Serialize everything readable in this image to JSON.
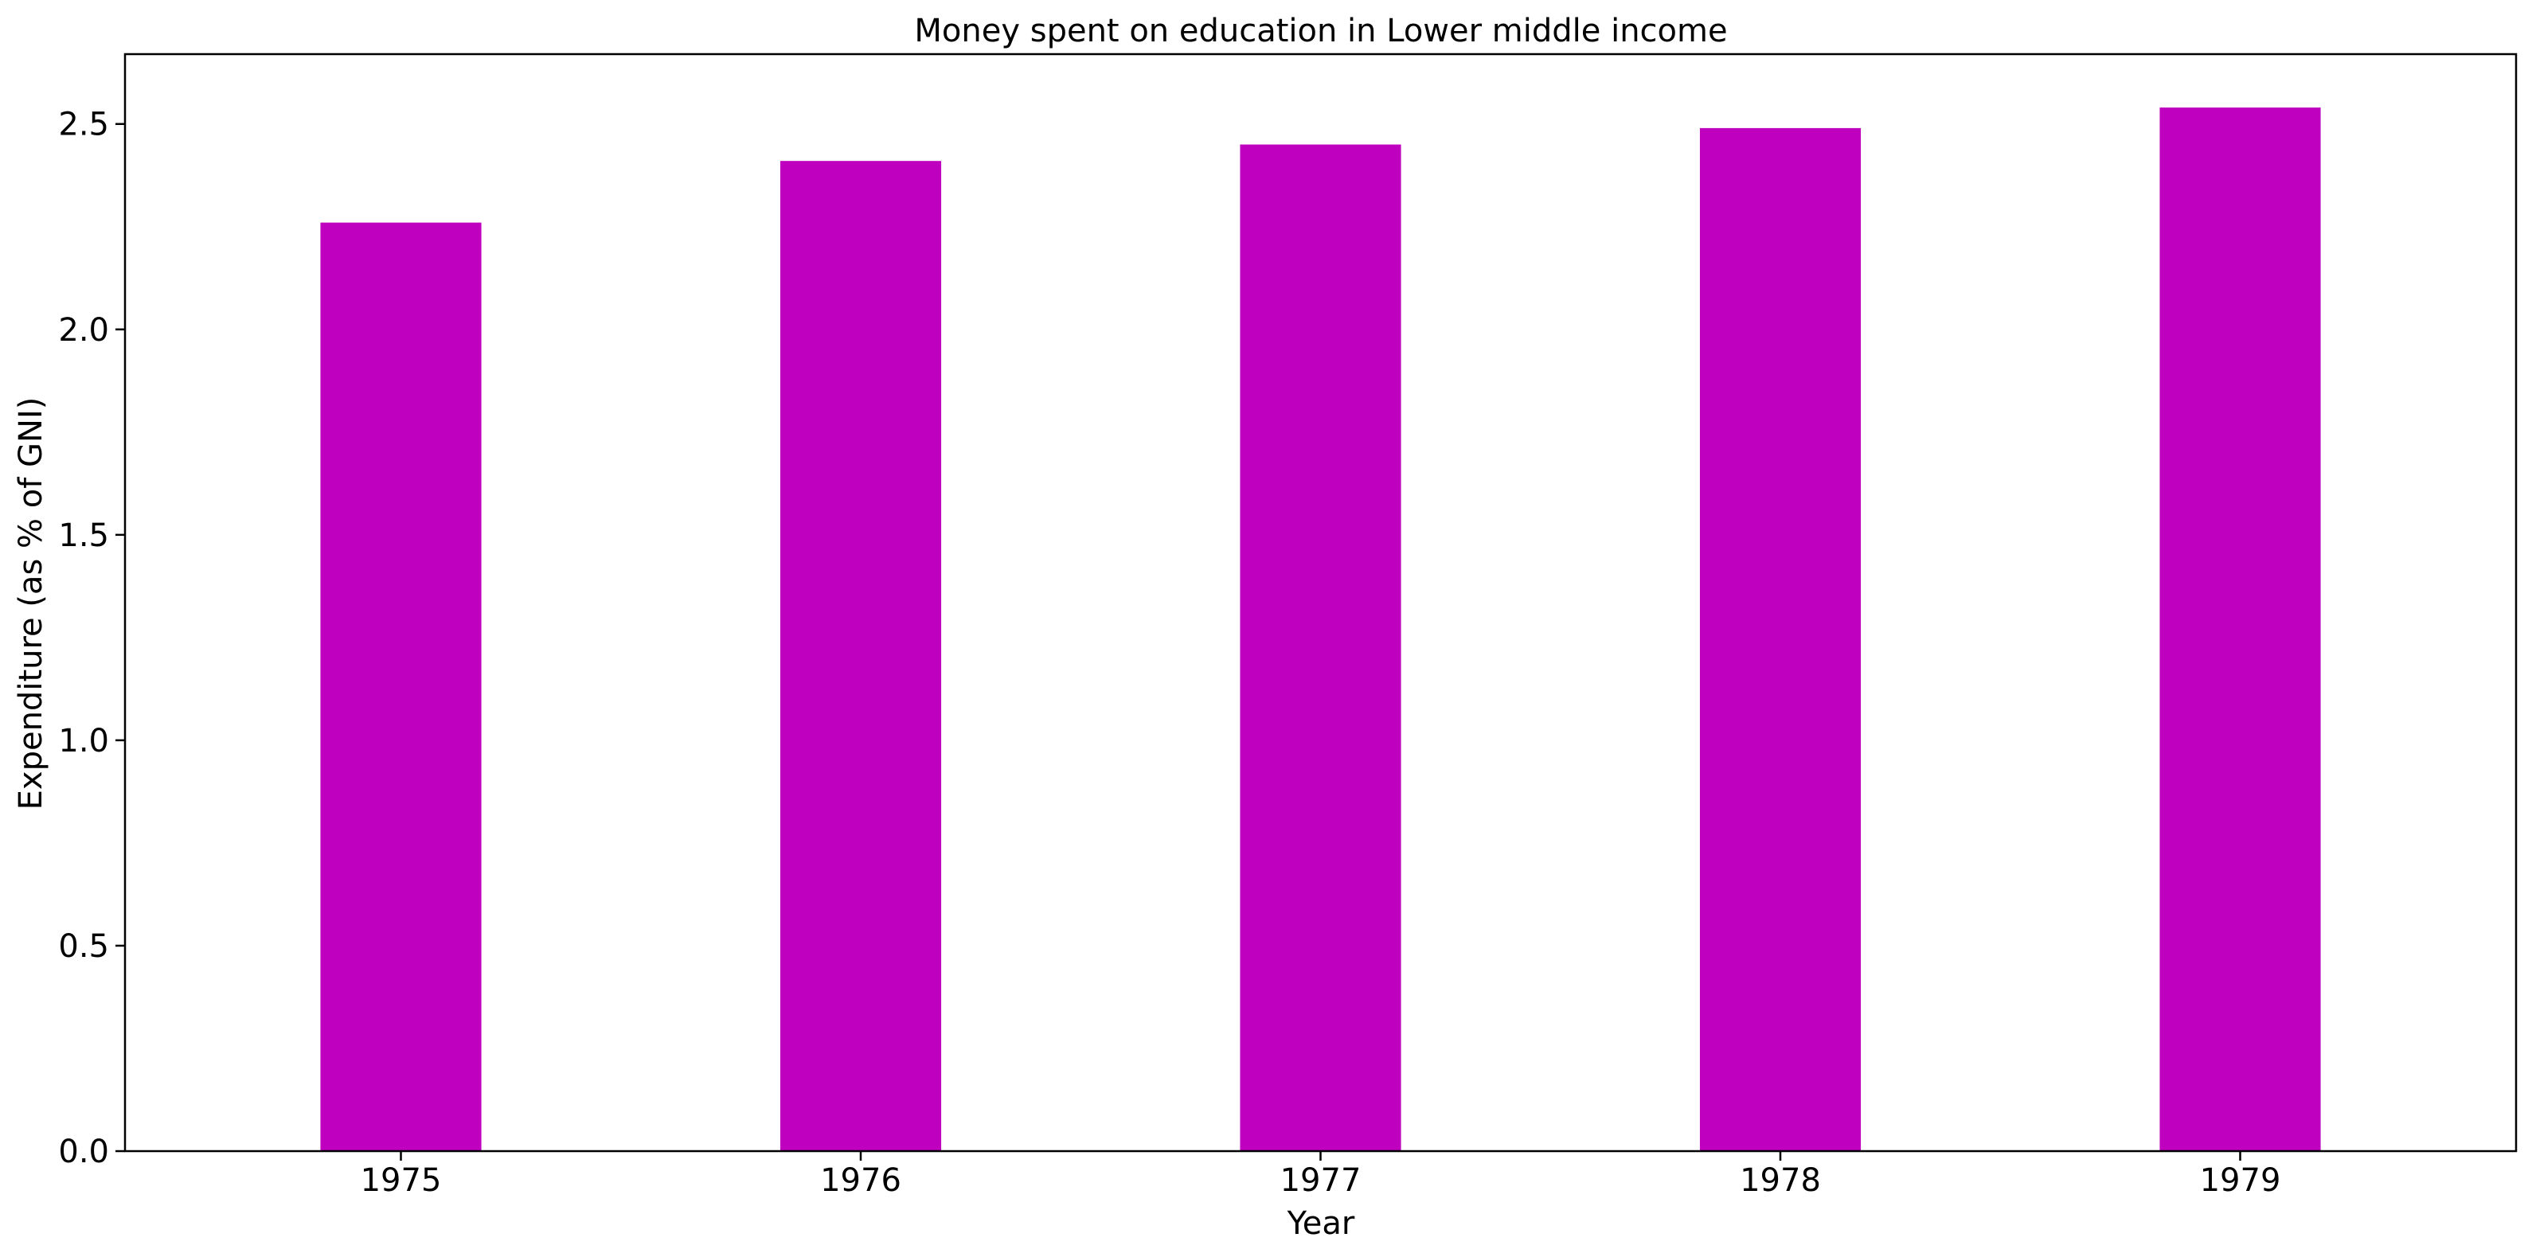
{
  "chart_data": {
    "type": "bar",
    "title": "Money spent on education in Lower middle income",
    "xlabel": "Year",
    "ylabel": "Expenditure (as % of GNI)",
    "categories": [
      "1975",
      "1976",
      "1977",
      "1978",
      "1979"
    ],
    "values": [
      2.26,
      2.41,
      2.45,
      2.49,
      2.54
    ],
    "ylim": [
      0,
      2.67
    ],
    "yticks": [
      0.0,
      0.5,
      1.0,
      1.5,
      2.0,
      2.5
    ],
    "ytick_labels": [
      "0.0",
      "0.5",
      "1.0",
      "1.5",
      "2.0",
      "2.5"
    ],
    "grid": false,
    "bar_color": "#bf00bf",
    "axes_color": "#000000"
  }
}
